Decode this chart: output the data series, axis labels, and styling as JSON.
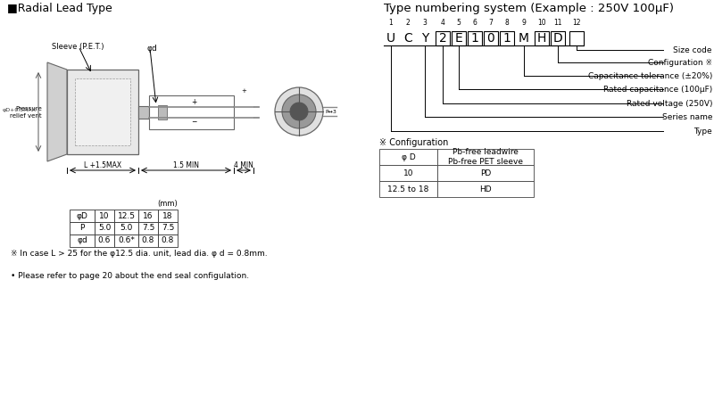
{
  "bg_color": "#ffffff",
  "left_title": "■Radial Lead Type",
  "right_title": "Type numbering system (Example : 250V 100μF)",
  "table_mm_label": "(mm)",
  "table_headers": [
    "φD",
    "10",
    "12.5",
    "16",
    "18"
  ],
  "table_row1": [
    "P",
    "5.0",
    "5.0",
    "7.5",
    "7.5"
  ],
  "table_row2": [
    "φd",
    "0.6",
    "0.6*",
    "0.8",
    "0.8"
  ],
  "note1": "※ In case L > 25 for the φ12.5 dia. unit, lead dia. φ d = 0.8mm.",
  "note2": "• Please refer to page 20 about the end seal configulation.",
  "type_numbers": [
    "1",
    "2",
    "3",
    "4",
    "5",
    "6",
    "7",
    "8",
    "9",
    "10",
    "11",
    "12"
  ],
  "type_chars": [
    "U",
    "C",
    "Y",
    "2",
    "E",
    "1",
    "0",
    "1",
    "M",
    "H",
    "D",
    ""
  ],
  "labels_right": [
    "Size code",
    "Configuration ※",
    "Capacitance tolerance (±20%)",
    "Rated capacitance (100μF)",
    "Rated voltage (250V)",
    "Series name",
    "Type"
  ],
  "config_title": "※ Configuration",
  "config_col1_header": "φ D",
  "config_col2_header": "Pb-free leadwire\nPb-free PET sleeve",
  "config_row1": [
    "10",
    "PD"
  ],
  "config_row2": [
    "12.5 to 18",
    "HD"
  ]
}
